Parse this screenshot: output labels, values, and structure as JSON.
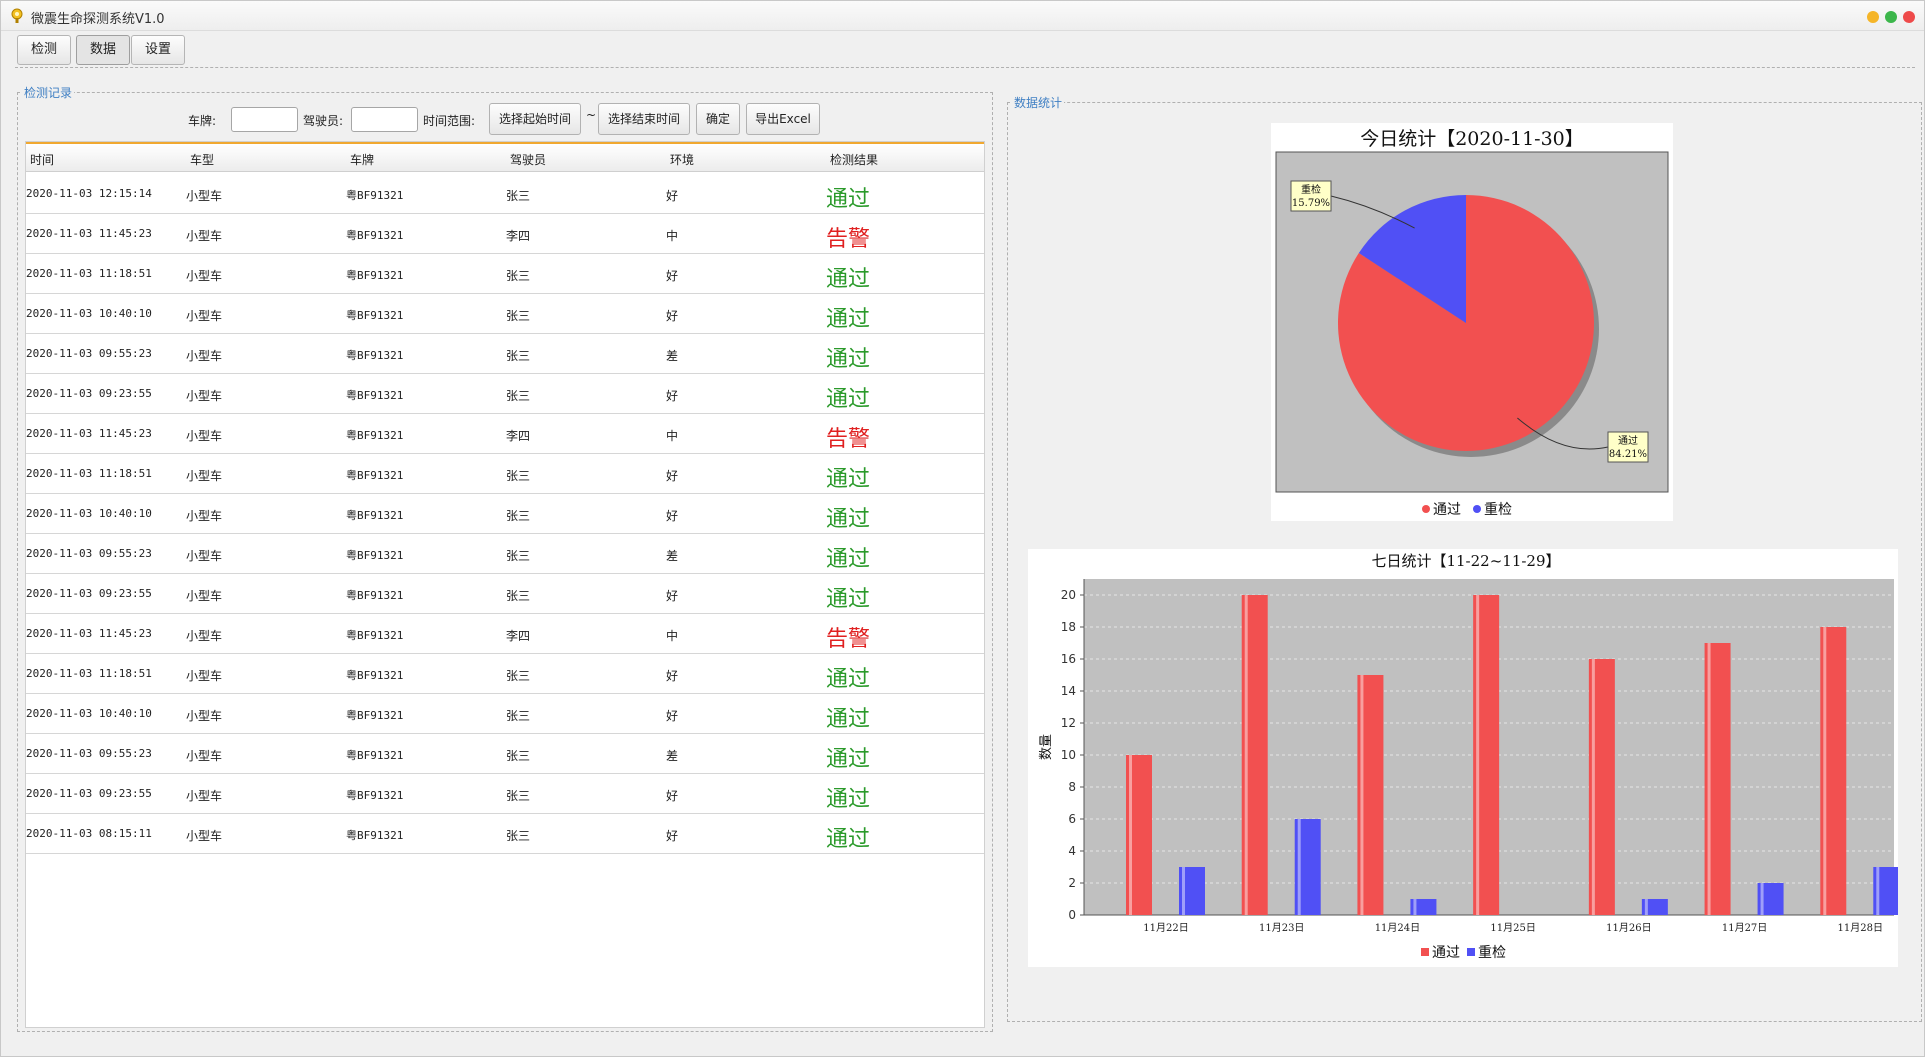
{
  "window": {
    "title": "微震生命探测系统V1.0"
  },
  "tabs": [
    {
      "label": "检测"
    },
    {
      "label": "数据"
    },
    {
      "label": "设置"
    }
  ],
  "records": {
    "legend": "检测记录",
    "filters": {
      "plate_label": "车牌:",
      "plate_value": "",
      "driver_label": "驾驶员:",
      "driver_value": "",
      "range_label": "时间范围:",
      "start_button": "选择起始时间",
      "separator": "~",
      "end_button": "选择结束时间",
      "confirm_button": "确定",
      "export_button": "导出Excel"
    },
    "columns": [
      "时间",
      "车型",
      "车牌",
      "驾驶员",
      "环境",
      "检测结果"
    ],
    "rows": [
      {
        "time": "2020-11-03 12:15:14",
        "type": "小型车",
        "plate": "粤BF91321",
        "driver": "张三",
        "env": "好",
        "result": "通过"
      },
      {
        "time": "2020-11-03 11:45:23",
        "type": "小型车",
        "plate": "粤BF91321",
        "driver": "李四",
        "env": "中",
        "result": "告警"
      },
      {
        "time": "2020-11-03 11:18:51",
        "type": "小型车",
        "plate": "粤BF91321",
        "driver": "张三",
        "env": "好",
        "result": "通过"
      },
      {
        "time": "2020-11-03 10:40:10",
        "type": "小型车",
        "plate": "粤BF91321",
        "driver": "张三",
        "env": "好",
        "result": "通过"
      },
      {
        "time": "2020-11-03 09:55:23",
        "type": "小型车",
        "plate": "粤BF91321",
        "driver": "张三",
        "env": "差",
        "result": "通过"
      },
      {
        "time": "2020-11-03 09:23:55",
        "type": "小型车",
        "plate": "粤BF91321",
        "driver": "张三",
        "env": "好",
        "result": "通过"
      },
      {
        "time": "2020-11-03 11:45:23",
        "type": "小型车",
        "plate": "粤BF91321",
        "driver": "李四",
        "env": "中",
        "result": "告警"
      },
      {
        "time": "2020-11-03 11:18:51",
        "type": "小型车",
        "plate": "粤BF91321",
        "driver": "张三",
        "env": "好",
        "result": "通过"
      },
      {
        "time": "2020-11-03 10:40:10",
        "type": "小型车",
        "plate": "粤BF91321",
        "driver": "张三",
        "env": "好",
        "result": "通过"
      },
      {
        "time": "2020-11-03 09:55:23",
        "type": "小型车",
        "plate": "粤BF91321",
        "driver": "张三",
        "env": "差",
        "result": "通过"
      },
      {
        "time": "2020-11-03 09:23:55",
        "type": "小型车",
        "plate": "粤BF91321",
        "driver": "张三",
        "env": "好",
        "result": "通过"
      },
      {
        "time": "2020-11-03 11:45:23",
        "type": "小型车",
        "plate": "粤BF91321",
        "driver": "李四",
        "env": "中",
        "result": "告警"
      },
      {
        "time": "2020-11-03 11:18:51",
        "type": "小型车",
        "plate": "粤BF91321",
        "driver": "张三",
        "env": "好",
        "result": "通过"
      },
      {
        "time": "2020-11-03 10:40:10",
        "type": "小型车",
        "plate": "粤BF91321",
        "driver": "张三",
        "env": "好",
        "result": "通过"
      },
      {
        "time": "2020-11-03 09:55:23",
        "type": "小型车",
        "plate": "粤BF91321",
        "driver": "张三",
        "env": "差",
        "result": "通过"
      },
      {
        "time": "2020-11-03 09:23:55",
        "type": "小型车",
        "plate": "粤BF91321",
        "driver": "张三",
        "env": "好",
        "result": "通过"
      },
      {
        "time": "2020-11-03 08:15:11",
        "type": "小型车",
        "plate": "粤BF91321",
        "driver": "张三",
        "env": "好",
        "result": "通过"
      }
    ]
  },
  "stats": {
    "legend": "数据统计"
  },
  "colors": {
    "pass": "#f25050",
    "recheck": "#5050f5",
    "pass_text": "#2a9a2a",
    "alarm_text": "#e02020",
    "plot_bg": "#c0c0c0"
  },
  "chart_data": [
    {
      "type": "pie",
      "title": "今日统计【2020-11-30】",
      "labels": [
        "通过",
        "重检"
      ],
      "values": [
        84.21,
        15.79
      ],
      "slice_labels": [
        "通过\n84.21%",
        "重检\n15.79%"
      ],
      "legend": [
        "通过",
        "重检"
      ],
      "legend_position": "bottom"
    },
    {
      "type": "bar",
      "title": "七日统计【11-22~11-29】",
      "categories": [
        "11月22日",
        "11月23日",
        "11月24日",
        "11月25日",
        "11月26日",
        "11月27日",
        "11月28日"
      ],
      "series": [
        {
          "name": "通过",
          "values": [
            10,
            20,
            15,
            20,
            16,
            17,
            18
          ]
        },
        {
          "name": "重检",
          "values": [
            3,
            6,
            1,
            0,
            1,
            2,
            3
          ]
        }
      ],
      "xlabel": "",
      "ylabel": "数量",
      "ylim": [
        0,
        21
      ],
      "yticks": [
        0,
        2,
        4,
        6,
        8,
        10,
        12,
        14,
        16,
        18,
        20
      ],
      "grid": true,
      "legend_position": "bottom"
    }
  ]
}
